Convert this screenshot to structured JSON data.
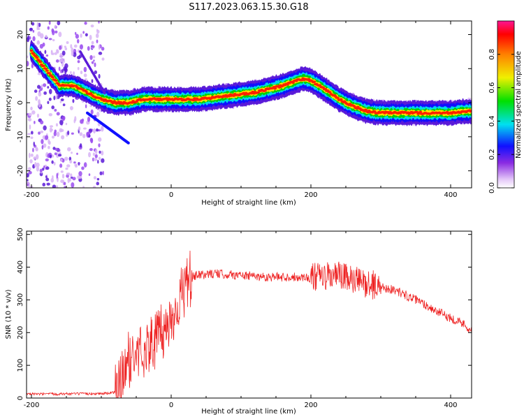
{
  "figure_title": "S117.2023.063.15.30.G18",
  "chart_data": [
    {
      "type": "heatmap",
      "xlabel": "Height of straight line (km)",
      "ylabel": "Frequency (Hz)",
      "xlim": [
        -207,
        430
      ],
      "ylim": [
        -25,
        24
      ],
      "xticks": [
        "-200",
        "0",
        "200",
        "400"
      ],
      "yticks": [
        "20",
        "10",
        "0",
        "-10",
        "-20"
      ],
      "ridge": {
        "x": [
          -200,
          -180,
          -160,
          -140,
          -120,
          -100,
          -80,
          -60,
          -40,
          -20,
          0,
          20,
          40,
          60,
          80,
          100,
          120,
          140,
          160,
          180,
          190,
          200,
          220,
          240,
          260,
          280,
          300,
          320,
          340,
          360,
          380,
          400,
          420,
          430
        ],
        "y": [
          15,
          10,
          5,
          5,
          3,
          1,
          0,
          0,
          1,
          1,
          1,
          1,
          1,
          1.5,
          2,
          2.5,
          3,
          4,
          5,
          6.5,
          7,
          6.5,
          4,
          1,
          -1,
          -2.5,
          -3,
          -3,
          -3,
          -3,
          -3,
          -3,
          -2.5,
          -2.5
        ]
      },
      "colorbar": {
        "label": "Normalized spectral amplitude",
        "ticks": [
          "0.0",
          "0.2",
          "0.4",
          "0.6",
          "0.8"
        ],
        "range": [
          0,
          1
        ]
      }
    },
    {
      "type": "line",
      "series_name": "SNR",
      "xlabel": "Height of straight line (km)",
      "ylabel": "SNR (10 * v/v)",
      "xlim": [
        -207,
        430
      ],
      "ylim": [
        0,
        510
      ],
      "xticks": [
        "-200",
        "0",
        "200",
        "400"
      ],
      "yticks": [
        "0",
        "100",
        "200",
        "300",
        "400",
        "500"
      ],
      "color": "#ee2222",
      "x": [
        -207,
        -180,
        -150,
        -120,
        -100,
        -90,
        -80,
        -70,
        -60,
        -50,
        -40,
        -30,
        -20,
        -10,
        0,
        10,
        20,
        30,
        40,
        60,
        80,
        100,
        120,
        140,
        160,
        180,
        200,
        220,
        240,
        260,
        280,
        300,
        320,
        340,
        360,
        380,
        400,
        420,
        430
      ],
      "values": [
        12,
        12,
        13,
        13,
        14,
        15,
        18,
        60,
        120,
        130,
        150,
        160,
        185,
        205,
        240,
        290,
        340,
        370,
        375,
        380,
        378,
        375,
        372,
        370,
        370,
        370,
        368,
        370,
        375,
        360,
        350,
        340,
        330,
        310,
        290,
        265,
        245,
        225,
        205
      ]
    }
  ]
}
